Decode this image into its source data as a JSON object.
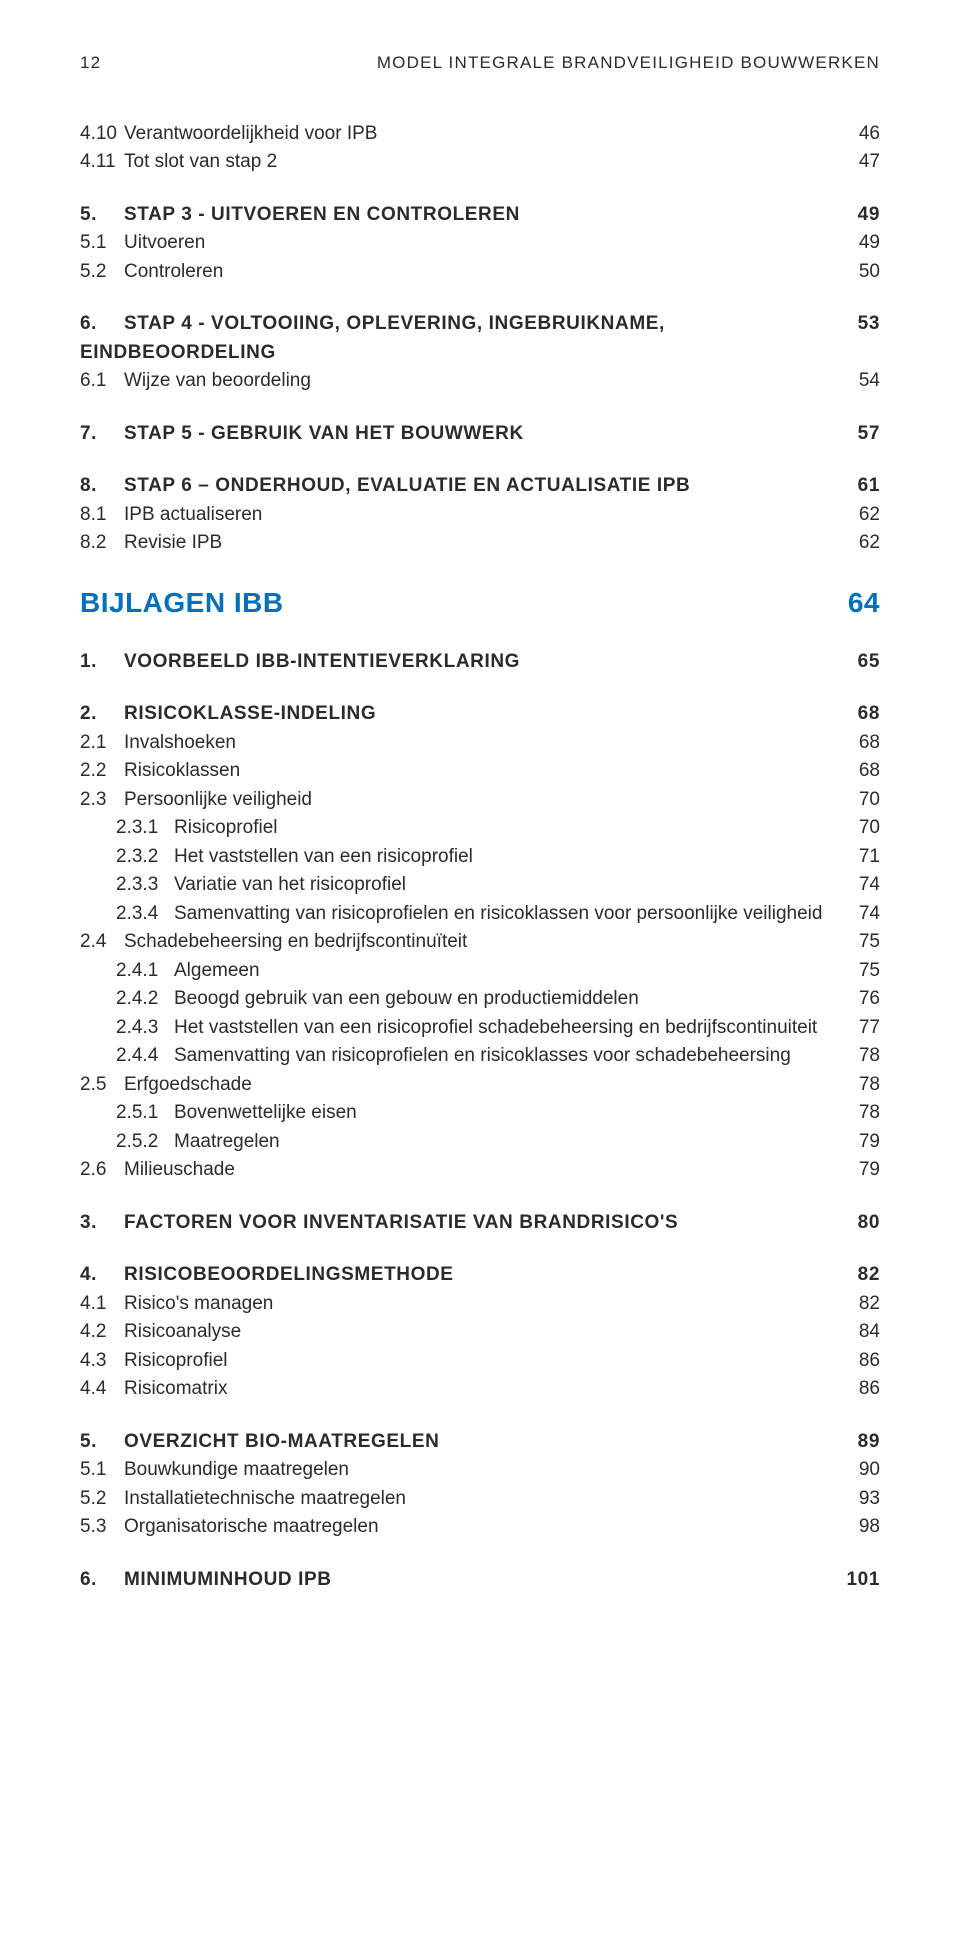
{
  "header": {
    "page_number": "12",
    "title": "Model Integrale Brandveiligheid Bouwwerken"
  },
  "toc": [
    {
      "type": "row",
      "cls": "ind1",
      "num": "4.10",
      "label": "Verantwoordelijkheid voor IPB",
      "pg": "46"
    },
    {
      "type": "row",
      "cls": "ind1",
      "num": "4.11",
      "label": "Tot slot van stap 2",
      "pg": "47"
    },
    {
      "type": "row",
      "cls": "bold up gap-l",
      "num": "5.",
      "label": "Stap 3 - Uitvoeren en controleren",
      "pg": "49"
    },
    {
      "type": "row",
      "cls": "ind1",
      "num": "5.1",
      "label": "Uitvoeren",
      "pg": "49"
    },
    {
      "type": "row",
      "cls": "ind1",
      "num": "5.2",
      "label": "Controleren",
      "pg": "50"
    },
    {
      "type": "row",
      "cls": "bold up gap-l",
      "num": "6.",
      "label": "Stap 4 - Voltooiing, oplevering, ingebruikname, eindbeoordeling",
      "pg": "53"
    },
    {
      "type": "row",
      "cls": "ind1",
      "num": "6.1",
      "label": "Wijze van beoordeling",
      "pg": "54"
    },
    {
      "type": "row",
      "cls": "bold up gap-l",
      "num": "7.",
      "label": "Stap 5 - Gebruik van het bouwwerk",
      "pg": "57"
    },
    {
      "type": "row",
      "cls": "bold up gap-l",
      "num": "8.",
      "label": "Stap 6 – Onderhoud, evaluatie en actualisatie IPB",
      "pg": "61"
    },
    {
      "type": "row",
      "cls": "ind1",
      "num": "8.1",
      "label": "IPB actualiseren",
      "pg": "62"
    },
    {
      "type": "row",
      "cls": "ind1",
      "num": "8.2",
      "label": "Revisie IPB",
      "pg": "62"
    },
    {
      "type": "row",
      "cls": "blue section-title up gap-l",
      "label": "Bijlagen IBB",
      "pg": "64"
    },
    {
      "type": "row",
      "cls": "bold up gap-l",
      "num": "1.",
      "label": "Voorbeeld IBB-intentieverklaring",
      "pg": "65"
    },
    {
      "type": "row",
      "cls": "bold up gap-l",
      "num": "2.",
      "label": "Risicoklasse-indeling",
      "pg": "68"
    },
    {
      "type": "row",
      "cls": "ind1",
      "num": "2.1",
      "label": "Invalshoeken",
      "pg": "68"
    },
    {
      "type": "row",
      "cls": "ind1",
      "num": "2.2",
      "label": "Risicoklassen",
      "pg": "68"
    },
    {
      "type": "row",
      "cls": "ind1",
      "num": "2.3",
      "label": "Persoonlijke veiligheid",
      "pg": "70"
    },
    {
      "type": "row",
      "cls": "ind2",
      "num": "2.3.1",
      "label": "Risicoprofiel",
      "pg": "70"
    },
    {
      "type": "row",
      "cls": "ind2",
      "num": "2.3.2",
      "label": "Het vaststellen van een risicoprofiel",
      "pg": "71"
    },
    {
      "type": "row",
      "cls": "ind2",
      "num": "2.3.3",
      "label": "Variatie van het risicoprofiel",
      "pg": "74"
    },
    {
      "type": "row",
      "cls": "ind2",
      "num": "2.3.4",
      "label": "Samenvatting van risicoprofielen en risicoklassen voor persoonlijke veiligheid",
      "pg": "74"
    },
    {
      "type": "row",
      "cls": "ind1",
      "num": "2.4",
      "label": "Schadebeheersing en bedrijfscontinuïteit",
      "pg": "75"
    },
    {
      "type": "row",
      "cls": "ind2",
      "num": "2.4.1",
      "label": "Algemeen",
      "pg": "75"
    },
    {
      "type": "row",
      "cls": "ind2",
      "num": "2.4.2",
      "label": "Beoogd gebruik van een gebouw en productiemiddelen",
      "pg": "76"
    },
    {
      "type": "row",
      "cls": "ind2",
      "num": "2.4.3",
      "label": "Het vaststellen van een risicoprofiel schadebeheersing en bedrijfscontinuiteit",
      "pg": "77"
    },
    {
      "type": "row",
      "cls": "ind2",
      "num": "2.4.4",
      "label": "Samenvatting van risicoprofielen en risicoklasses voor schadebeheersing",
      "pg": "78"
    },
    {
      "type": "row",
      "cls": "ind1",
      "num": "2.5",
      "label": "Erfgoedschade",
      "pg": "78"
    },
    {
      "type": "row",
      "cls": "ind2",
      "num": "2.5.1",
      "label": "Bovenwettelijke eisen",
      "pg": "78"
    },
    {
      "type": "row",
      "cls": "ind2",
      "num": "2.5.2",
      "label": "Maatregelen",
      "pg": "79"
    },
    {
      "type": "row",
      "cls": "ind1",
      "num": "2.6",
      "label": "Milieuschade",
      "pg": "79"
    },
    {
      "type": "row",
      "cls": "bold up gap-l",
      "num": "3.",
      "label": "Factoren voor inventarisatie van brandrisico's",
      "pg": "80"
    },
    {
      "type": "row",
      "cls": "bold up gap-l",
      "num": "4.",
      "label": "Risicobeoordelingsmethode",
      "pg": "82"
    },
    {
      "type": "row",
      "cls": "ind1",
      "num": "4.1",
      "label": "Risico's managen",
      "pg": "82"
    },
    {
      "type": "row",
      "cls": "ind1",
      "num": "4.2",
      "label": "Risicoanalyse",
      "pg": "84"
    },
    {
      "type": "row",
      "cls": "ind1",
      "num": "4.3",
      "label": "Risicoprofiel",
      "pg": "86"
    },
    {
      "type": "row",
      "cls": "ind1",
      "num": "4.4",
      "label": "Risicomatrix",
      "pg": "86"
    },
    {
      "type": "row",
      "cls": "bold up gap-l",
      "num": "5.",
      "label": "Overzicht BIO-maatregelen",
      "pg": "89"
    },
    {
      "type": "row",
      "cls": "ind1",
      "num": "5.1",
      "label": "Bouwkundige maatregelen",
      "pg": "90"
    },
    {
      "type": "row",
      "cls": "ind1",
      "num": "5.2",
      "label": "Installatietechnische maatregelen",
      "pg": "93"
    },
    {
      "type": "row",
      "cls": "ind1",
      "num": "5.3",
      "label": "Organisatorische maatregelen",
      "pg": "98"
    },
    {
      "type": "row",
      "cls": "bold up gap-l",
      "num": "6.",
      "label": "Minimuminhoud IPB",
      "pg": "101"
    }
  ]
}
